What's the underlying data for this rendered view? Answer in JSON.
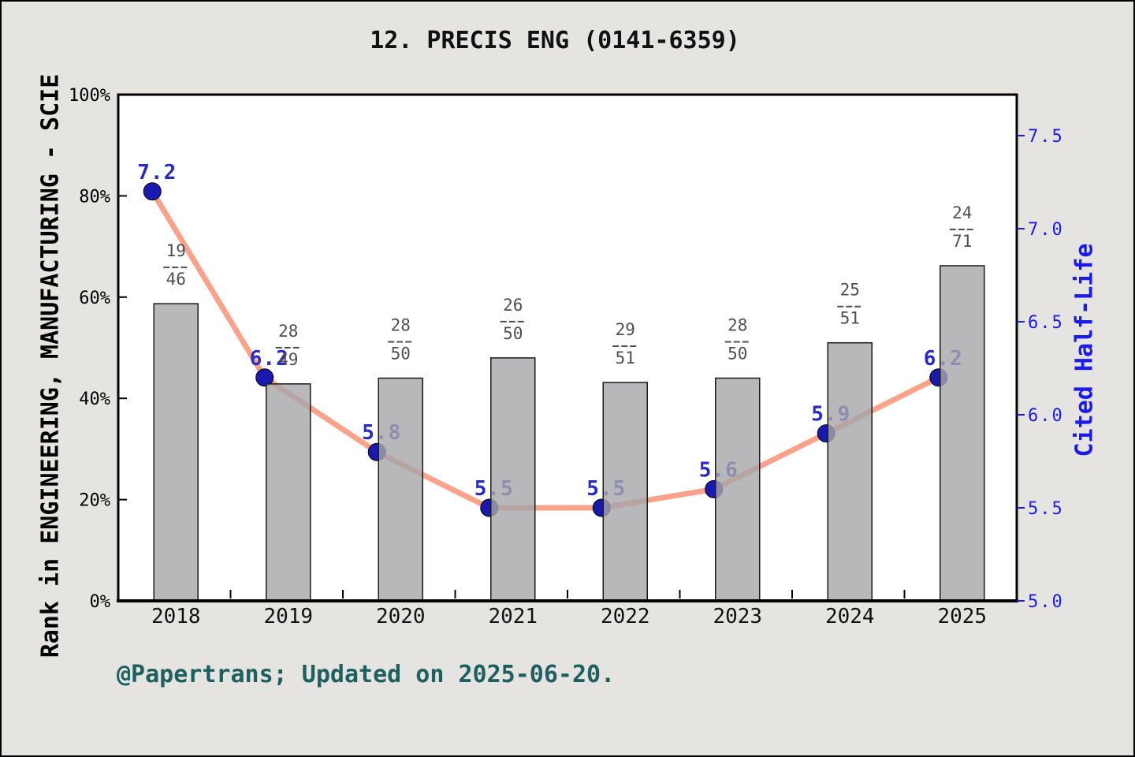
{
  "title": "12. PRECIS ENG (0141-6359)",
  "caption": "@Papertrans; Updated on 2025-06-20.",
  "chart_data": {
    "type": "bar",
    "subtype": "dual-axis bar + line",
    "categories": [
      "2018",
      "2019",
      "2020",
      "2021",
      "2022",
      "2023",
      "2024",
      "2025"
    ],
    "series": [
      {
        "name": "Rank in category (bars, left axis)",
        "type": "bar",
        "axis": "left",
        "fractions": [
          {
            "numerator": "19",
            "denominator": "46"
          },
          {
            "numerator": "28",
            "denominator": "49"
          },
          {
            "numerator": "28",
            "denominator": "50"
          },
          {
            "numerator": "26",
            "denominator": "50"
          },
          {
            "numerator": "29",
            "denominator": "51"
          },
          {
            "numerator": "28",
            "denominator": "50"
          },
          {
            "numerator": "25",
            "denominator": "51"
          },
          {
            "numerator": "24",
            "denominator": "71"
          }
        ],
        "values_pct": [
          58.7,
          42.86,
          44.0,
          48.0,
          43.14,
          44.0,
          50.98,
          66.2
        ]
      },
      {
        "name": "Cited Half-Life (line, right axis)",
        "type": "line",
        "axis": "right",
        "values": [
          7.2,
          6.2,
          5.8,
          5.5,
          5.5,
          5.6,
          5.9,
          6.2
        ],
        "labels": [
          "7.2",
          "6.2",
          "5.8",
          "5.5",
          "5.5",
          "5.6",
          "5.9",
          "6.2"
        ]
      }
    ],
    "left_axis": {
      "title": "Rank in ENGINEERING, MANUFACTURING - SCIE",
      "ticks": [
        "0%",
        "20%",
        "40%",
        "60%",
        "80%",
        "100%"
      ],
      "range": [
        0,
        100
      ]
    },
    "right_axis": {
      "title": "Cited Half-Life",
      "ticks": [
        "5.0",
        "5.5",
        "6.0",
        "6.5",
        "7.0",
        "7.5"
      ],
      "range": [
        5.0,
        7.5
      ]
    },
    "grid": false,
    "legend": "none",
    "colors": {
      "background": "#e5e4e1",
      "plot_background": "#ffffff",
      "frame": "#000000",
      "bar_fill": "#a6a6aa",
      "bar_fill_opacity": "0.8",
      "bar_border": "#1a1a1a",
      "line": "#faa28a",
      "marker": "#1919b0",
      "marker_edge": "#000000",
      "point_label": "#2a2ac6",
      "fraction_label": "#4f4f4f",
      "left_tick_label": "#000000",
      "right_tick_label": "#1b1bee",
      "caption": "#1e5f5f"
    }
  }
}
